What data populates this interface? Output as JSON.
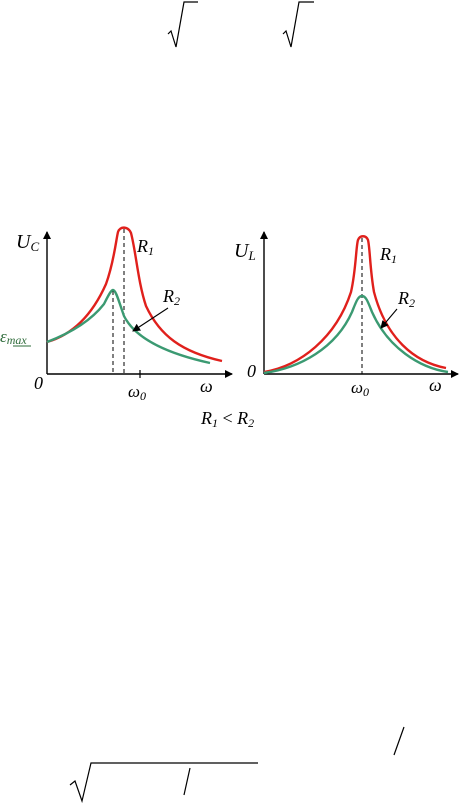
{
  "figure": {
    "left_chart": {
      "y_axis_label": {
        "main": "U",
        "sub": "C"
      },
      "x_axis_label": "ω",
      "origin_label": "0",
      "omega0_label": {
        "main": "ω",
        "sub": "0"
      },
      "emf_label": {
        "main": "ε",
        "sub": "max"
      },
      "curve_labels": [
        {
          "main": "R",
          "sub": "1"
        },
        {
          "main": "R",
          "sub": "2"
        }
      ]
    },
    "right_chart": {
      "y_axis_label": {
        "main": "U",
        "sub": "L"
      },
      "x_axis_label": "ω",
      "origin_label": "0",
      "omega0_label": {
        "main": "ω",
        "sub": "0"
      },
      "curve_labels": [
        {
          "main": "R",
          "sub": "1"
        },
        {
          "main": "R",
          "sub": "2"
        }
      ]
    },
    "caption": {
      "r1": "R",
      "r1_sub": "1",
      "op": " < ",
      "r2": "R",
      "r2_sub": "2"
    }
  },
  "colors": {
    "r1_curve": "#e0201c",
    "r2_curve": "#3b9a72",
    "axes": "#000000",
    "emf_label": "#2e6b3a"
  }
}
